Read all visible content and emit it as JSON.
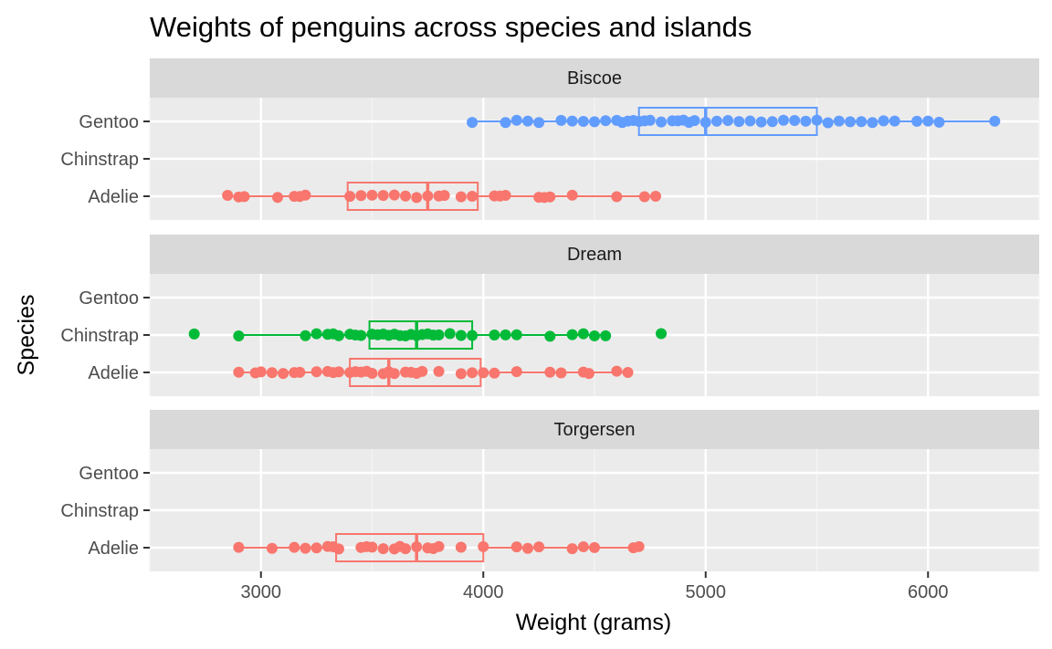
{
  "chart_data": {
    "type": "box+jitter",
    "title": "Weights of penguins across species and islands",
    "xlabel": "Weight (grams)",
    "ylabel": "Species",
    "xlim": [
      2500,
      6500
    ],
    "x_ticks": [
      3000,
      4000,
      5000,
      6000
    ],
    "y_categories": [
      "Gentoo",
      "Chinstrap",
      "Adelie"
    ],
    "colors": {
      "Adelie": "#F8766D",
      "Chinstrap": "#00BA38",
      "Gentoo": "#619CFF"
    },
    "grid": true,
    "legend": "none",
    "facets": [
      {
        "panel": "Biscoe",
        "groups": [
          {
            "species": "Gentoo",
            "box": {
              "min": 3950,
              "q1": 4700,
              "median": 5000,
              "q3": 5500,
              "max": 6300
            },
            "points": [
              3950,
              4100,
              4150,
              4200,
              4250,
              4350,
              4400,
              4450,
              4500,
              4550,
              4600,
              4625,
              4650,
              4675,
              4700,
              4725,
              4750,
              4800,
              4850,
              4875,
              4900,
              4925,
              4950,
              5000,
              5050,
              5100,
              5150,
              5200,
              5250,
              5300,
              5350,
              5400,
              5450,
              5500,
              5550,
              5600,
              5650,
              5700,
              5750,
              5800,
              5850,
              5950,
              6000,
              6050,
              6300
            ]
          },
          {
            "species": "Adelie",
            "box": {
              "min": 2850,
              "q1": 3390,
              "median": 3750,
              "q3": 3975,
              "max": 4775
            },
            "points": [
              2850,
              2900,
              2925,
              3075,
              3150,
              3175,
              3200,
              3400,
              3450,
              3500,
              3550,
              3600,
              3650,
              3700,
              3750,
              3800,
              3825,
              3900,
              3950,
              4050,
              4075,
              4100,
              4250,
              4275,
              4300,
              4400,
              4600,
              4725,
              4775
            ]
          }
        ]
      },
      {
        "panel": "Dream",
        "groups": [
          {
            "species": "Chinstrap",
            "box": {
              "min": 2900,
              "q1": 3488,
              "median": 3700,
              "q3": 3950,
              "max": 4550
            },
            "points": [
              2700,
              2900,
              3200,
              3250,
              3300,
              3325,
              3350,
              3400,
              3425,
              3450,
              3500,
              3525,
              3550,
              3575,
              3600,
              3625,
              3650,
              3675,
              3700,
              3725,
              3750,
              3775,
              3800,
              3850,
              3900,
              3950,
              4050,
              4100,
              4150,
              4300,
              4400,
              4450,
              4500,
              4550,
              4800
            ]
          },
          {
            "species": "Adelie",
            "box": {
              "min": 2900,
              "q1": 3400,
              "median": 3575,
              "q3": 3988,
              "max": 4650
            },
            "points": [
              2900,
              2975,
              3000,
              3050,
              3100,
              3150,
              3175,
              3250,
              3300,
              3325,
              3350,
              3400,
              3425,
              3450,
              3475,
              3500,
              3550,
              3575,
              3600,
              3650,
              3675,
              3700,
              3725,
              3800,
              3900,
              3950,
              4000,
              4050,
              4150,
              4300,
              4350,
              4450,
              4475,
              4600,
              4650
            ]
          }
        ]
      },
      {
        "panel": "Torgersen",
        "groups": [
          {
            "species": "Adelie",
            "box": {
              "min": 2900,
              "q1": 3338,
              "median": 3700,
              "q3": 4000,
              "max": 4700
            },
            "points": [
              2900,
              3050,
              3150,
              3200,
              3250,
              3300,
              3325,
              3350,
              3450,
              3475,
              3500,
              3550,
              3600,
              3625,
              3650,
              3700,
              3750,
              3775,
              3800,
              3900,
              4000,
              4150,
              4200,
              4250,
              4400,
              4450,
              4500,
              4675,
              4700
            ]
          }
        ]
      }
    ]
  }
}
